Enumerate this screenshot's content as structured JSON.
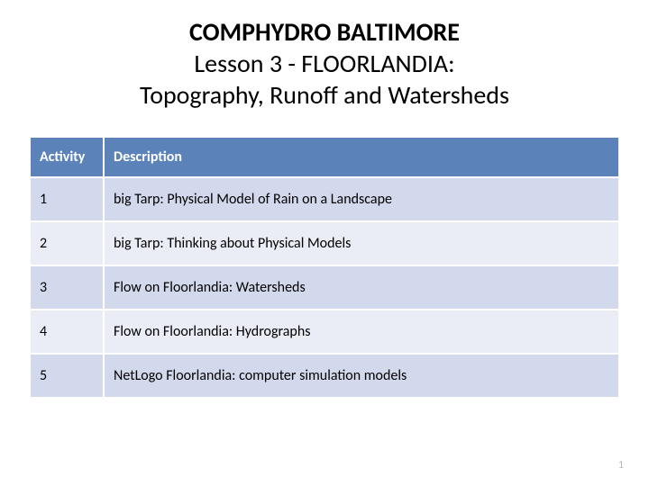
{
  "title": {
    "line1": "COMPHYDRO BALTIMORE",
    "line2": "Lesson 3 - FLOORLANDIA:",
    "line3": "Topography, Runoff and Watersheds"
  },
  "table": {
    "headers": {
      "activity": "Activity",
      "description": "Description"
    },
    "column_widths": {
      "activity": 82
    },
    "header_bg": "#5b83ba",
    "header_fg": "#ffffff",
    "row_bg_odd": "#d2d9ec",
    "row_bg_even": "#eaedf6",
    "border_color": "#ffffff",
    "font_size": 16,
    "rows": [
      {
        "activity": "1",
        "description": "big Tarp: Physical Model of Rain on a Landscape"
      },
      {
        "activity": "2",
        "description": "big Tarp: Thinking about Physical Models"
      },
      {
        "activity": "3",
        "description": "Flow on Floorlandia: Watersheds"
      },
      {
        "activity": "4",
        "description": "Flow on Floorlandia: Hydrographs"
      },
      {
        "activity": "5",
        "description": "NetLogo Floorlandia: computer simulation models"
      }
    ]
  },
  "page_number": "1",
  "background_color": "#ffffff",
  "title_fontsize": 28
}
